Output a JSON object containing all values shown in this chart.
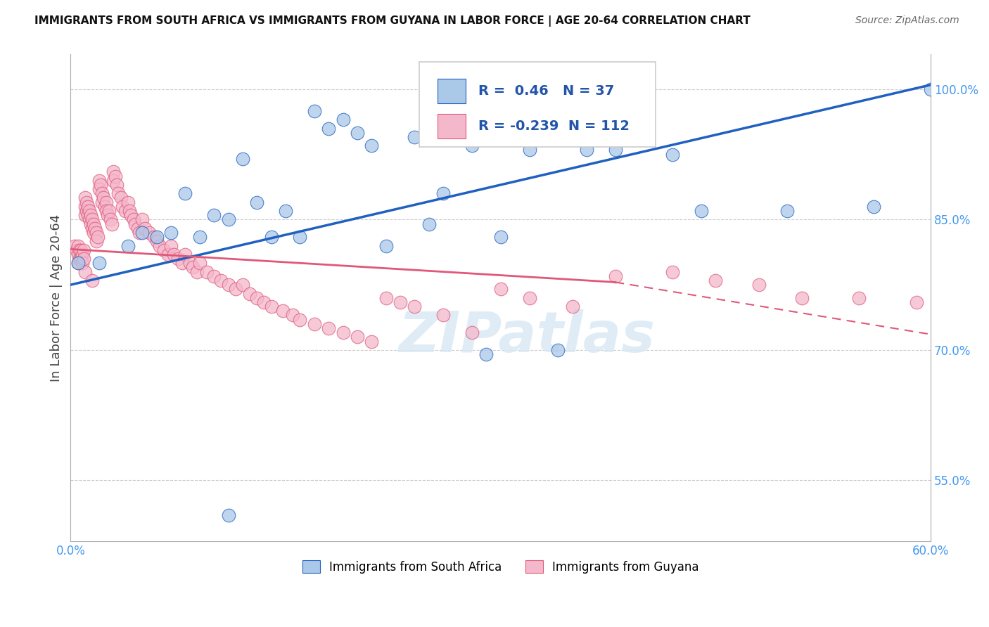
{
  "title": "IMMIGRANTS FROM SOUTH AFRICA VS IMMIGRANTS FROM GUYANA IN LABOR FORCE | AGE 20-64 CORRELATION CHART",
  "source": "Source: ZipAtlas.com",
  "ylabel": "In Labor Force | Age 20-64",
  "xlim": [
    0.0,
    0.6
  ],
  "ylim": [
    0.48,
    1.04
  ],
  "xticks": [
    0.0,
    0.1,
    0.2,
    0.3,
    0.4,
    0.5,
    0.6
  ],
  "xticklabels": [
    "0.0%",
    "",
    "",
    "",
    "",
    "",
    "60.0%"
  ],
  "yticks": [
    0.55,
    0.7,
    0.85,
    1.0
  ],
  "yticklabels": [
    "55.0%",
    "70.0%",
    "85.0%",
    "100.0%"
  ],
  "R_blue": 0.46,
  "N_blue": 37,
  "R_pink": -0.239,
  "N_pink": 112,
  "blue_color": "#aac8e8",
  "pink_color": "#f4b8cc",
  "blue_line_color": "#2060c0",
  "pink_line_color": "#e05878",
  "legend_label_blue": "Immigrants from South Africa",
  "legend_label_pink": "Immigrants from Guyana",
  "blue_trend": [
    0.0,
    0.775,
    0.6,
    1.005
  ],
  "pink_trend_solid": [
    0.0,
    0.816,
    0.38,
    0.778
  ],
  "pink_trend_dash": [
    0.38,
    0.778,
    0.6,
    0.718
  ],
  "blue_scatter_x": [
    0.005,
    0.02,
    0.04,
    0.06,
    0.08,
    0.1,
    0.12,
    0.14,
    0.16,
    0.18,
    0.2,
    0.22,
    0.24,
    0.26,
    0.28,
    0.3,
    0.32,
    0.36,
    0.38,
    0.42,
    0.44,
    0.5,
    0.56,
    0.6,
    0.05,
    0.07,
    0.09,
    0.11,
    0.13,
    0.15,
    0.17,
    0.19,
    0.21,
    0.25,
    0.29,
    0.34,
    0.11
  ],
  "blue_scatter_y": [
    0.8,
    0.8,
    0.82,
    0.83,
    0.88,
    0.855,
    0.92,
    0.83,
    0.83,
    0.955,
    0.95,
    0.82,
    0.945,
    0.88,
    0.935,
    0.83,
    0.93,
    0.93,
    0.93,
    0.925,
    0.86,
    0.86,
    0.865,
    1.0,
    0.835,
    0.835,
    0.83,
    0.85,
    0.87,
    0.86,
    0.975,
    0.965,
    0.935,
    0.845,
    0.695,
    0.7,
    0.51
  ],
  "pink_scatter_x": [
    0.003,
    0.004,
    0.005,
    0.005,
    0.005,
    0.006,
    0.006,
    0.007,
    0.007,
    0.008,
    0.008,
    0.009,
    0.009,
    0.01,
    0.01,
    0.01,
    0.011,
    0.011,
    0.012,
    0.012,
    0.013,
    0.013,
    0.014,
    0.014,
    0.015,
    0.015,
    0.016,
    0.016,
    0.017,
    0.018,
    0.018,
    0.019,
    0.02,
    0.02,
    0.021,
    0.022,
    0.022,
    0.023,
    0.024,
    0.025,
    0.025,
    0.026,
    0.027,
    0.028,
    0.029,
    0.03,
    0.03,
    0.031,
    0.032,
    0.033,
    0.035,
    0.036,
    0.038,
    0.04,
    0.041,
    0.042,
    0.044,
    0.045,
    0.047,
    0.048,
    0.05,
    0.052,
    0.055,
    0.058,
    0.06,
    0.062,
    0.065,
    0.068,
    0.07,
    0.072,
    0.075,
    0.078,
    0.08,
    0.083,
    0.085,
    0.088,
    0.09,
    0.095,
    0.1,
    0.105,
    0.11,
    0.115,
    0.12,
    0.125,
    0.13,
    0.135,
    0.14,
    0.148,
    0.155,
    0.16,
    0.17,
    0.18,
    0.19,
    0.2,
    0.21,
    0.22,
    0.23,
    0.24,
    0.26,
    0.28,
    0.3,
    0.32,
    0.35,
    0.38,
    0.42,
    0.45,
    0.48,
    0.51,
    0.55,
    0.59,
    0.01,
    0.015
  ],
  "pink_scatter_y": [
    0.82,
    0.815,
    0.82,
    0.81,
    0.8,
    0.815,
    0.805,
    0.815,
    0.805,
    0.81,
    0.8,
    0.815,
    0.805,
    0.875,
    0.865,
    0.855,
    0.87,
    0.86,
    0.865,
    0.855,
    0.86,
    0.85,
    0.855,
    0.845,
    0.85,
    0.84,
    0.845,
    0.835,
    0.84,
    0.835,
    0.825,
    0.83,
    0.895,
    0.885,
    0.89,
    0.88,
    0.87,
    0.875,
    0.865,
    0.87,
    0.86,
    0.855,
    0.86,
    0.85,
    0.845,
    0.905,
    0.895,
    0.9,
    0.89,
    0.88,
    0.875,
    0.865,
    0.86,
    0.87,
    0.86,
    0.855,
    0.85,
    0.845,
    0.84,
    0.835,
    0.85,
    0.84,
    0.835,
    0.83,
    0.825,
    0.82,
    0.815,
    0.81,
    0.82,
    0.81,
    0.805,
    0.8,
    0.81,
    0.8,
    0.795,
    0.79,
    0.8,
    0.79,
    0.785,
    0.78,
    0.775,
    0.77,
    0.775,
    0.765,
    0.76,
    0.755,
    0.75,
    0.745,
    0.74,
    0.735,
    0.73,
    0.725,
    0.72,
    0.715,
    0.71,
    0.76,
    0.755,
    0.75,
    0.74,
    0.72,
    0.77,
    0.76,
    0.75,
    0.785,
    0.79,
    0.78,
    0.775,
    0.76,
    0.76,
    0.755,
    0.79,
    0.78
  ]
}
